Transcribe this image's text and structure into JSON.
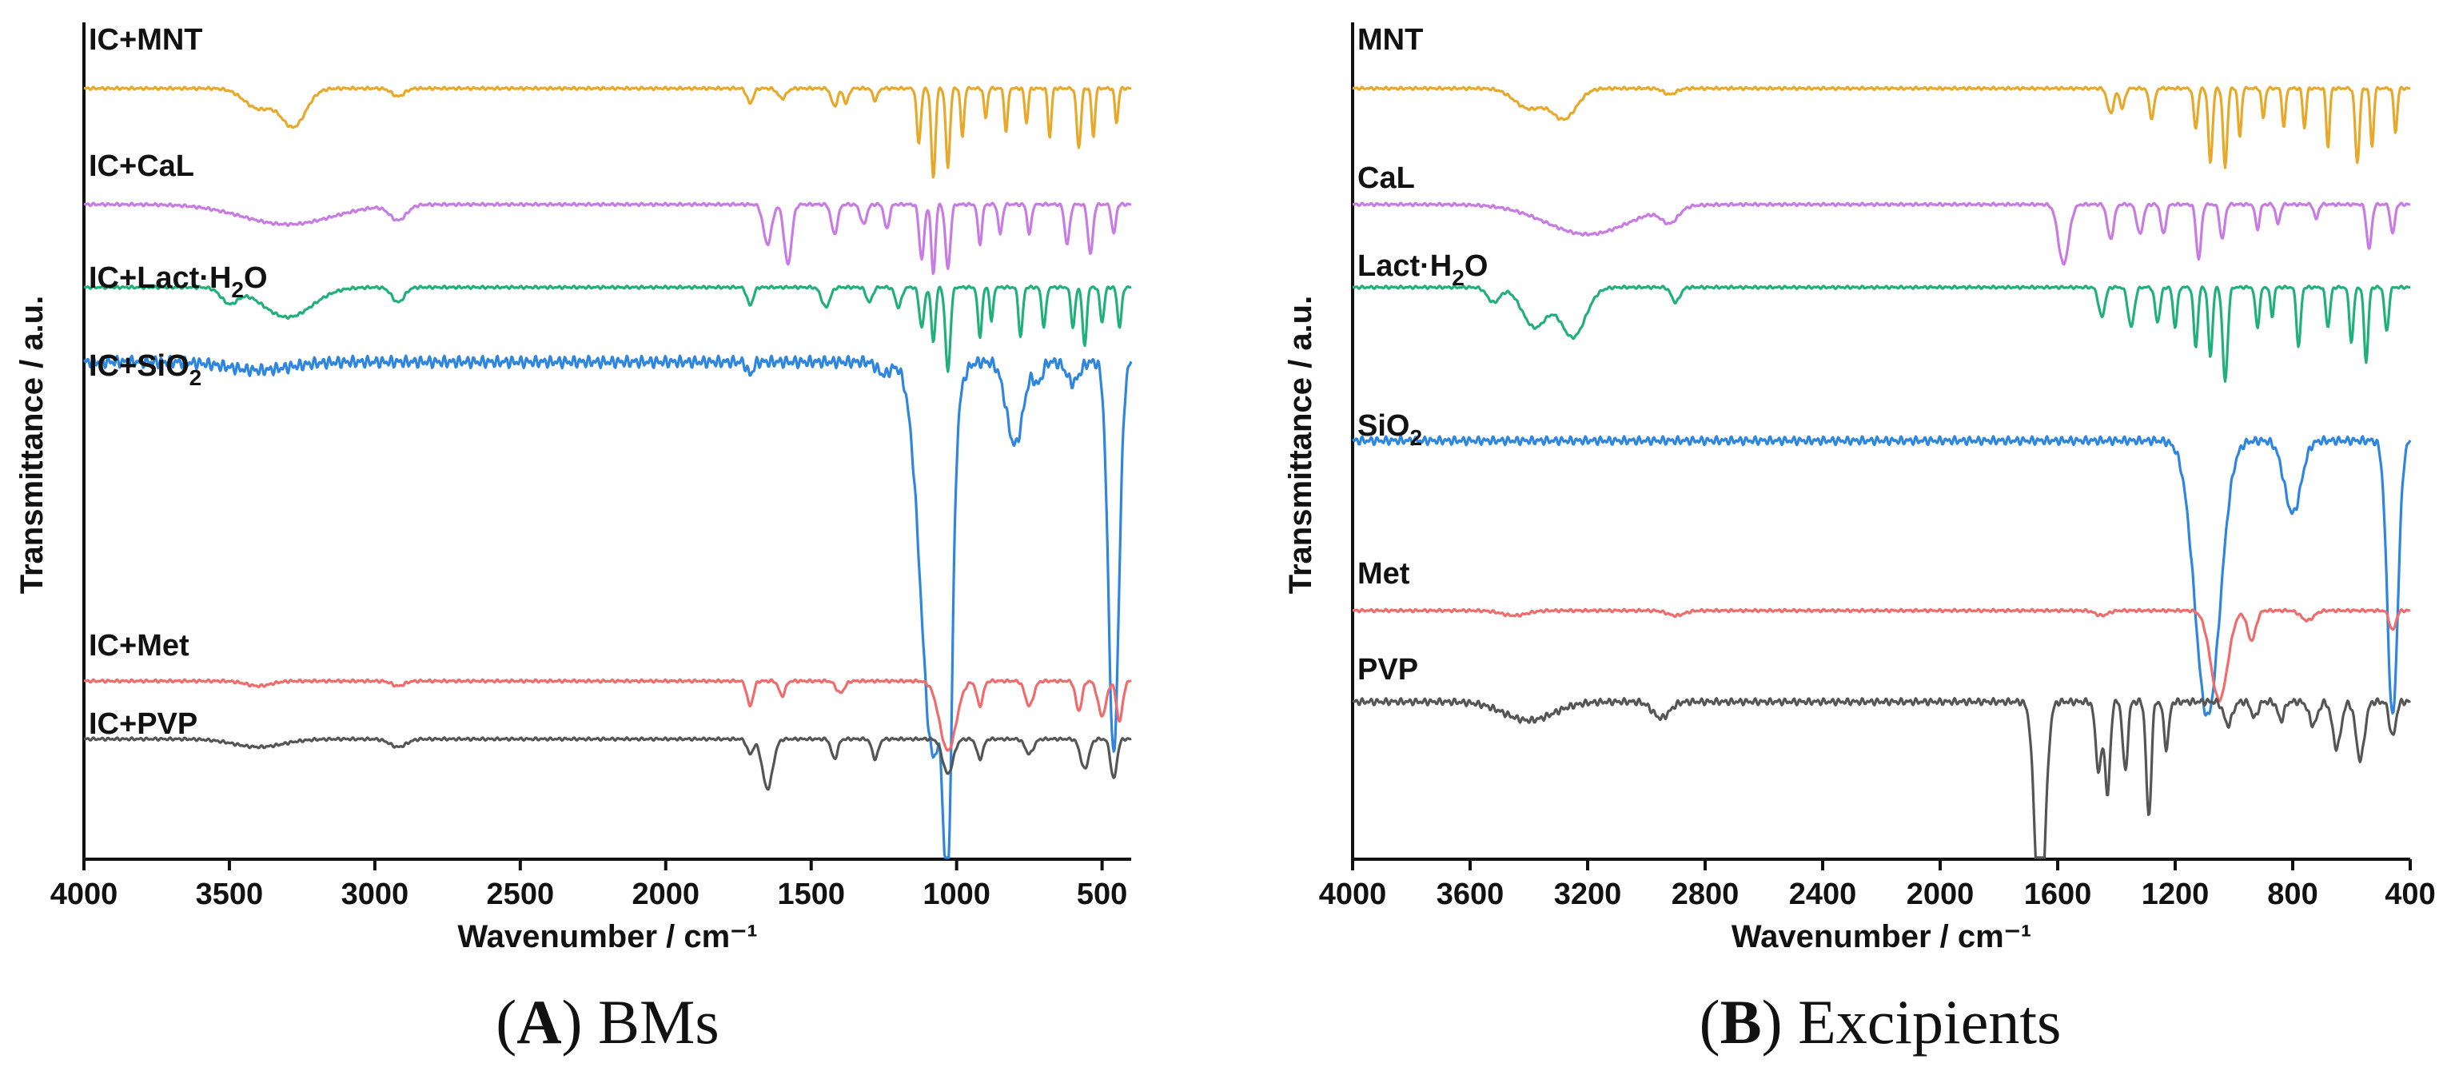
{
  "chart_data": [
    {
      "type": "line",
      "xlabel": "Wavenumber / cm⁻¹",
      "ylabel": "Transmittance / a.u.",
      "caption": {
        "letter": "A",
        "text": " BMs"
      },
      "xlim": [
        4000,
        400
      ],
      "xticks": [
        4000,
        3500,
        3000,
        2500,
        2000,
        1500,
        1000,
        500
      ],
      "grid": false,
      "series": [
        {
          "name": "IC+MNT",
          "label_base": "IC+MNT",
          "label_sub": "",
          "color": "#e8a92a",
          "baseline": 0.93,
          "amp": 0.12,
          "features": [
            [
              3400,
              0.2,
              70
            ],
            [
              3280,
              0.38,
              60
            ],
            [
              2920,
              0.08,
              30
            ],
            [
              1710,
              0.15,
              15
            ],
            [
              1600,
              0.1,
              20
            ],
            [
              1420,
              0.18,
              15
            ],
            [
              1380,
              0.15,
              12
            ],
            [
              1280,
              0.12,
              12
            ],
            [
              1130,
              0.55,
              10
            ],
            [
              1080,
              0.9,
              10
            ],
            [
              1030,
              0.8,
              10
            ],
            [
              980,
              0.5,
              8
            ],
            [
              900,
              0.3,
              8
            ],
            [
              830,
              0.45,
              8
            ],
            [
              760,
              0.35,
              8
            ],
            [
              680,
              0.5,
              8
            ],
            [
              580,
              0.6,
              10
            ],
            [
              530,
              0.5,
              8
            ],
            [
              450,
              0.35,
              8
            ]
          ]
        },
        {
          "name": "IC+CaL",
          "label_base": "IC+CaL",
          "label_sub": "",
          "color": "#c77be3",
          "baseline": 0.79,
          "amp": 0.12,
          "features": [
            [
              3300,
              0.2,
              220
            ],
            [
              2920,
              0.15,
              40
            ],
            [
              1650,
              0.4,
              20
            ],
            [
              1580,
              0.6,
              18
            ],
            [
              1420,
              0.3,
              15
            ],
            [
              1320,
              0.2,
              15
            ],
            [
              1240,
              0.25,
              12
            ],
            [
              1120,
              0.55,
              12
            ],
            [
              1080,
              0.7,
              10
            ],
            [
              1030,
              0.65,
              12
            ],
            [
              920,
              0.4,
              10
            ],
            [
              850,
              0.3,
              10
            ],
            [
              750,
              0.3,
              10
            ],
            [
              620,
              0.4,
              12
            ],
            [
              540,
              0.5,
              12
            ],
            [
              460,
              0.3,
              10
            ]
          ]
        },
        {
          "name": "IC+Lact·H2O",
          "label_base": "IC+Lact·H",
          "label_sub": "2",
          "label_tail": "O",
          "color": "#22b07a",
          "baseline": 0.69,
          "amp": 0.12,
          "features": [
            [
              3500,
              0.15,
              40
            ],
            [
              3300,
              0.3,
              120
            ],
            [
              2920,
              0.15,
              30
            ],
            [
              1710,
              0.18,
              15
            ],
            [
              1450,
              0.2,
              20
            ],
            [
              1300,
              0.15,
              15
            ],
            [
              1200,
              0.2,
              15
            ],
            [
              1120,
              0.4,
              12
            ],
            [
              1080,
              0.55,
              10
            ],
            [
              1030,
              0.85,
              12
            ],
            [
              920,
              0.5,
              10
            ],
            [
              880,
              0.35,
              8
            ],
            [
              780,
              0.5,
              10
            ],
            [
              700,
              0.4,
              10
            ],
            [
              600,
              0.4,
              10
            ],
            [
              560,
              0.6,
              10
            ],
            [
              500,
              0.35,
              10
            ],
            [
              440,
              0.4,
              10
            ]
          ]
        },
        {
          "name": "IC+SiO2",
          "label_base": "IC+SiO",
          "label_sub": "2",
          "label_tail": "",
          "color": "#2e86de",
          "baseline": 0.6,
          "amp": 0.5,
          "features": [
            [
              3400,
              0.02,
              150
            ],
            [
              1710,
              0.03,
              15
            ],
            [
              1250,
              0.03,
              30
            ],
            [
              1080,
              0.95,
              60
            ],
            [
              1030,
              0.8,
              20
            ],
            [
              800,
              0.2,
              40
            ],
            [
              720,
              0.05,
              20
            ],
            [
              600,
              0.05,
              30
            ],
            [
              460,
              0.95,
              25
            ]
          ]
        },
        {
          "name": "IC+Met",
          "label_base": "IC+Met",
          "label_sub": "",
          "color": "#f06b6b",
          "baseline": 0.215,
          "amp": 0.12,
          "features": [
            [
              3400,
              0.05,
              60
            ],
            [
              2920,
              0.05,
              30
            ],
            [
              1710,
              0.25,
              15
            ],
            [
              1600,
              0.15,
              15
            ],
            [
              1400,
              0.12,
              20
            ],
            [
              1030,
              0.7,
              40
            ],
            [
              920,
              0.25,
              15
            ],
            [
              750,
              0.25,
              20
            ],
            [
              580,
              0.3,
              15
            ],
            [
              500,
              0.35,
              20
            ],
            [
              440,
              0.4,
              15
            ]
          ]
        },
        {
          "name": "IC+PVP",
          "label_base": "IC+PVP",
          "label_sub": "",
          "color": "#555555",
          "baseline": 0.145,
          "amp": 0.12,
          "features": [
            [
              3400,
              0.08,
              120
            ],
            [
              2920,
              0.08,
              40
            ],
            [
              1710,
              0.15,
              15
            ],
            [
              1650,
              0.5,
              25
            ],
            [
              1420,
              0.2,
              15
            ],
            [
              1280,
              0.2,
              15
            ],
            [
              1030,
              0.35,
              25
            ],
            [
              920,
              0.2,
              15
            ],
            [
              750,
              0.15,
              20
            ],
            [
              560,
              0.3,
              20
            ],
            [
              460,
              0.4,
              15
            ]
          ]
        }
      ]
    },
    {
      "type": "line",
      "xlabel": "Wavenumber / cm⁻¹",
      "ylabel": "Transmittance / a.u.",
      "caption": {
        "letter": "B",
        "text": " Excipients"
      },
      "xlim": [
        4000,
        400
      ],
      "xticks": [
        4000,
        3600,
        3200,
        2800,
        2400,
        2000,
        1600,
        1200,
        800,
        400
      ],
      "grid": false,
      "series": [
        {
          "name": "MNT",
          "label_base": "MNT",
          "label_sub": "",
          "color": "#e8a92a",
          "baseline": 0.93,
          "amp": 0.12,
          "features": [
            [
              3400,
              0.2,
              70
            ],
            [
              3280,
              0.3,
              60
            ],
            [
              2920,
              0.06,
              30
            ],
            [
              1420,
              0.25,
              15
            ],
            [
              1380,
              0.2,
              12
            ],
            [
              1280,
              0.3,
              12
            ],
            [
              1130,
              0.4,
              10
            ],
            [
              1080,
              0.75,
              10
            ],
            [
              1030,
              0.8,
              10
            ],
            [
              980,
              0.5,
              8
            ],
            [
              900,
              0.3,
              8
            ],
            [
              830,
              0.4,
              8
            ],
            [
              760,
              0.4,
              8
            ],
            [
              680,
              0.6,
              8
            ],
            [
              580,
              0.75,
              10
            ],
            [
              530,
              0.6,
              8
            ],
            [
              450,
              0.45,
              8
            ]
          ]
        },
        {
          "name": "CaL",
          "label_base": "CaL",
          "label_sub": "",
          "color": "#c77be3",
          "baseline": 0.79,
          "amp": 0.12,
          "features": [
            [
              3200,
              0.3,
              200
            ],
            [
              2920,
              0.15,
              40
            ],
            [
              1580,
              0.6,
              25
            ],
            [
              1420,
              0.35,
              15
            ],
            [
              1320,
              0.3,
              15
            ],
            [
              1240,
              0.3,
              12
            ],
            [
              1120,
              0.55,
              12
            ],
            [
              1040,
              0.35,
              12
            ],
            [
              920,
              0.25,
              10
            ],
            [
              850,
              0.2,
              10
            ],
            [
              720,
              0.15,
              10
            ],
            [
              540,
              0.45,
              12
            ],
            [
              460,
              0.3,
              10
            ]
          ]
        },
        {
          "name": "Lact·H2O",
          "label_base": "Lact·H",
          "label_sub": "2",
          "label_tail": "O",
          "color": "#22b07a",
          "baseline": 0.69,
          "amp": 0.12,
          "features": [
            [
              3520,
              0.15,
              30
            ],
            [
              3380,
              0.4,
              60
            ],
            [
              3250,
              0.5,
              60
            ],
            [
              2900,
              0.15,
              20
            ],
            [
              1450,
              0.3,
              15
            ],
            [
              1350,
              0.4,
              15
            ],
            [
              1260,
              0.35,
              12
            ],
            [
              1200,
              0.4,
              10
            ],
            [
              1130,
              0.6,
              10
            ],
            [
              1080,
              0.7,
              10
            ],
            [
              1030,
              0.95,
              12
            ],
            [
              920,
              0.4,
              10
            ],
            [
              870,
              0.3,
              8
            ],
            [
              780,
              0.6,
              10
            ],
            [
              680,
              0.4,
              10
            ],
            [
              600,
              0.55,
              10
            ],
            [
              550,
              0.75,
              10
            ],
            [
              480,
              0.45,
              10
            ]
          ]
        },
        {
          "name": "SiO2",
          "label_base": "SiO",
          "label_sub": "2",
          "label_tail": "",
          "color": "#2e86de",
          "baseline": 0.505,
          "amp": 0.35,
          "features": [
            [
              1090,
              0.95,
              60
            ],
            [
              800,
              0.25,
              40
            ],
            [
              460,
              0.95,
              25
            ]
          ]
        },
        {
          "name": "Met",
          "label_base": "Met",
          "label_sub": "",
          "color": "#f06b6b",
          "baseline": 0.3,
          "amp": 0.12,
          "features": [
            [
              3450,
              0.05,
              60
            ],
            [
              2900,
              0.05,
              40
            ],
            [
              1450,
              0.05,
              30
            ],
            [
              1050,
              0.9,
              40
            ],
            [
              940,
              0.3,
              20
            ],
            [
              750,
              0.1,
              30
            ],
            [
              460,
              0.2,
              15
            ]
          ]
        },
        {
          "name": "PVP",
          "label_base": "PVP",
          "label_sub": "",
          "color": "#555555",
          "baseline": 0.19,
          "amp": 0.28,
          "features": [
            [
              3400,
              0.08,
              120
            ],
            [
              2950,
              0.07,
              40
            ],
            [
              1660,
              0.95,
              25
            ],
            [
              1460,
              0.3,
              15
            ],
            [
              1430,
              0.4,
              12
            ],
            [
              1370,
              0.3,
              12
            ],
            [
              1290,
              0.5,
              12
            ],
            [
              1230,
              0.2,
              12
            ],
            [
              1020,
              0.1,
              20
            ],
            [
              930,
              0.07,
              15
            ],
            [
              840,
              0.08,
              15
            ],
            [
              730,
              0.1,
              20
            ],
            [
              650,
              0.2,
              20
            ],
            [
              570,
              0.25,
              20
            ],
            [
              460,
              0.15,
              15
            ]
          ]
        }
      ]
    }
  ]
}
